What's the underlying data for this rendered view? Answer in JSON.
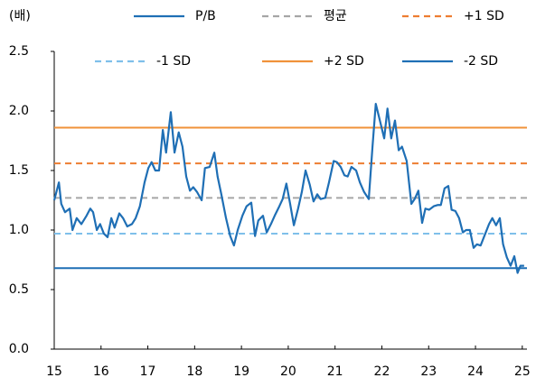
{
  "chart_data": {
    "type": "line",
    "y_unit": "(배)",
    "x": [
      15.0,
      15.1,
      15.15,
      15.23,
      15.33,
      15.39,
      15.48,
      15.58,
      15.69,
      15.77,
      15.83,
      15.91,
      15.98,
      16.06,
      16.14,
      16.22,
      16.29,
      16.39,
      16.47,
      16.56,
      16.66,
      16.74,
      16.83,
      16.93,
      17.01,
      17.08,
      17.16,
      17.24,
      17.32,
      17.39,
      17.49,
      17.57,
      17.66,
      17.74,
      17.82,
      17.9,
      17.97,
      18.05,
      18.15,
      18.22,
      18.32,
      18.42,
      18.49,
      18.57,
      18.67,
      18.76,
      18.84,
      18.92,
      19.02,
      19.11,
      19.21,
      19.29,
      19.36,
      19.46,
      19.54,
      19.63,
      19.71,
      19.81,
      19.88,
      19.96,
      20.04,
      20.12,
      20.21,
      20.29,
      20.37,
      20.46,
      20.54,
      20.62,
      20.69,
      20.79,
      20.87,
      20.97,
      21.04,
      21.12,
      21.2,
      21.27,
      21.35,
      21.45,
      21.53,
      21.62,
      21.72,
      21.8,
      21.87,
      21.97,
      22.05,
      22.12,
      22.2,
      22.28,
      22.36,
      22.43,
      22.53,
      22.63,
      22.7,
      22.78,
      22.86,
      22.93,
      23.01,
      23.11,
      23.19,
      23.26,
      23.34,
      23.42,
      23.49,
      23.57,
      23.65,
      23.73,
      23.8,
      23.88,
      23.96,
      24.03,
      24.11,
      24.21,
      24.29,
      24.36,
      24.44,
      24.52,
      24.59,
      24.67,
      24.75,
      24.83,
      24.9,
      24.96,
      25.04
    ],
    "series": [
      {
        "name": "P/B",
        "color": "#1f6fb5",
        "values": [
          1.25,
          1.4,
          1.22,
          1.15,
          1.18,
          1.0,
          1.1,
          1.05,
          1.12,
          1.18,
          1.15,
          1.0,
          1.05,
          0.97,
          0.94,
          1.1,
          1.02,
          1.14,
          1.1,
          1.03,
          1.05,
          1.1,
          1.2,
          1.4,
          1.52,
          1.57,
          1.5,
          1.5,
          1.84,
          1.65,
          1.99,
          1.65,
          1.82,
          1.7,
          1.45,
          1.33,
          1.36,
          1.32,
          1.25,
          1.52,
          1.53,
          1.65,
          1.45,
          1.3,
          1.1,
          0.95,
          0.87,
          1.0,
          1.12,
          1.2,
          1.23,
          0.95,
          1.08,
          1.12,
          0.98,
          1.05,
          1.12,
          1.2,
          1.26,
          1.39,
          1.22,
          1.04,
          1.18,
          1.32,
          1.5,
          1.38,
          1.24,
          1.3,
          1.26,
          1.27,
          1.4,
          1.58,
          1.57,
          1.53,
          1.46,
          1.45,
          1.53,
          1.5,
          1.4,
          1.32,
          1.26,
          1.7,
          2.06,
          1.9,
          1.77,
          2.02,
          1.77,
          1.92,
          1.67,
          1.7,
          1.58,
          1.22,
          1.26,
          1.33,
          1.06,
          1.18,
          1.17,
          1.2,
          1.21,
          1.21,
          1.35,
          1.37,
          1.17,
          1.16,
          1.1,
          0.98,
          1.0,
          1.0,
          0.85,
          0.88,
          0.87,
          0.97,
          1.05,
          1.1,
          1.04,
          1.1,
          0.88,
          0.77,
          0.7,
          0.78,
          0.64,
          0.7,
          0.7
        ]
      }
    ],
    "hlines": [
      {
        "name": "평균",
        "color": "#a6a6a6",
        "value": 1.27,
        "dashed": true
      },
      {
        "name": "+1 SD",
        "color": "#ed7d31",
        "value": 1.56,
        "dashed": true
      },
      {
        "name": "-1 SD",
        "color": "#7fbfea",
        "value": 0.97,
        "dashed": true
      },
      {
        "name": "+2 SD",
        "color": "#f0923a",
        "value": 1.86,
        "dashed": false
      },
      {
        "name": "-2 SD",
        "color": "#1f6fb5",
        "value": 0.68,
        "dashed": false
      }
    ],
    "xlim": [
      15,
      25.1
    ],
    "xticks": [
      15,
      16,
      17,
      18,
      19,
      20,
      21,
      22,
      23,
      24,
      25
    ],
    "ylim": [
      0,
      2.5
    ],
    "yticks": [
      {
        "value": 0,
        "label": "0.0"
      },
      0.5,
      {
        "value": 1,
        "label": "1.0"
      },
      1.5,
      {
        "value": 2,
        "label": "2.0"
      },
      2.5
    ],
    "grid": false
  }
}
